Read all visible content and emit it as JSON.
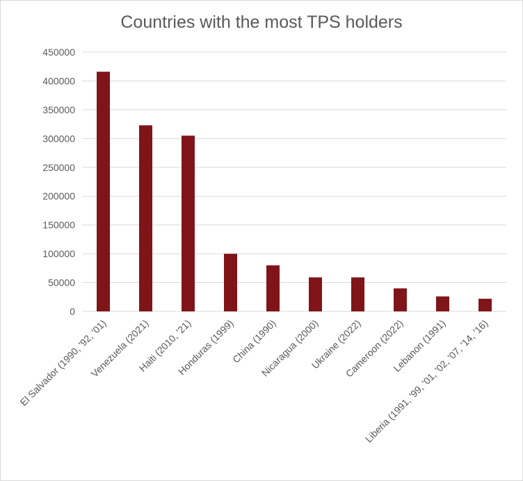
{
  "chart_data": {
    "type": "bar",
    "title": "Countries with the most TPS holders",
    "categories": [
      "El Salvador (1990, '92, '01)",
      "Venezuela (2021)",
      "Haiti (2010, '21)",
      "Honduras (1999)",
      "China (1990)",
      "Nicaragua (2000)",
      "Ukraine (2022)",
      "Cameroon (2022)",
      "Lebanon (1991)",
      "Liberia (1991, '99, '01, '02, '07, '14, '16)"
    ],
    "values": [
      416000,
      323000,
      305000,
      100000,
      80000,
      59000,
      59000,
      40000,
      26000,
      22000
    ],
    "ylim": [
      0,
      450000
    ],
    "yticks": [
      "0",
      "50000",
      "100000",
      "150000",
      "200000",
      "250000",
      "300000",
      "350000",
      "400000",
      "450000"
    ],
    "grid": true,
    "legend": "none",
    "bar_color": "#7f1518",
    "grid_color": "#d9d9d9"
  }
}
